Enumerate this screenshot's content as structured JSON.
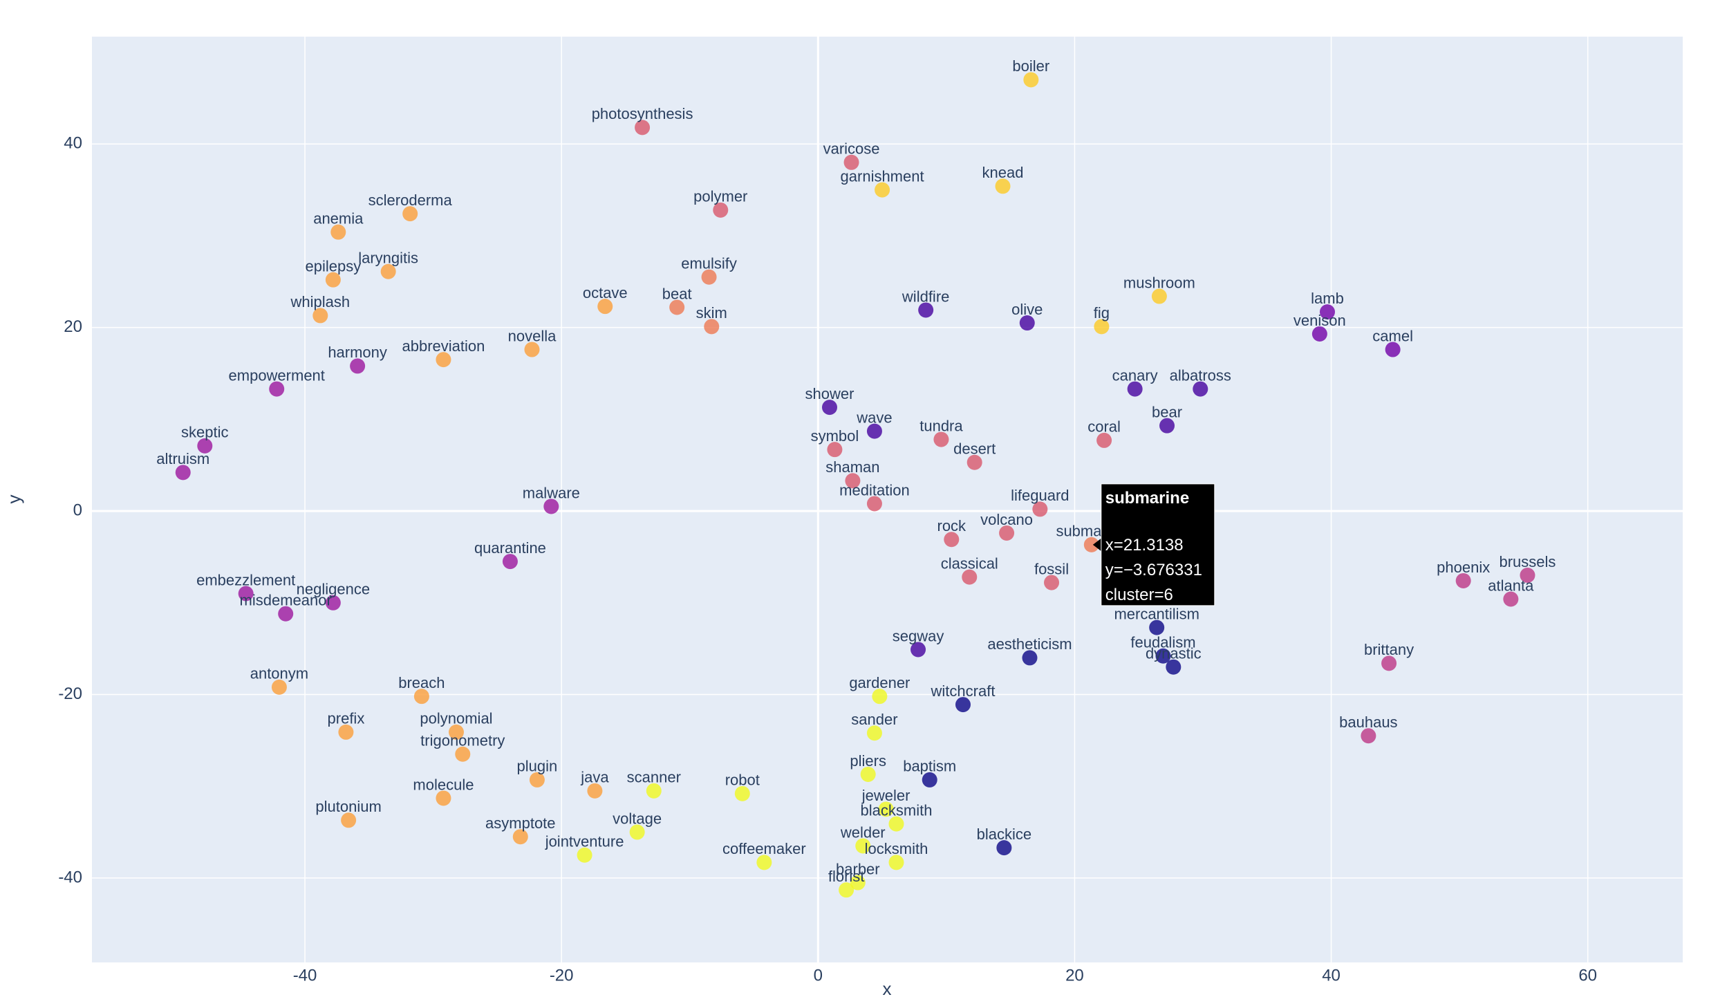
{
  "chart_data": {
    "type": "scatter",
    "x_label": "x",
    "y_label": "y",
    "xlim": [
      -56.6,
      67.4
    ],
    "ylim": [
      -49.2,
      51.7
    ],
    "xticks": [
      -40,
      -20,
      0,
      20,
      40,
      60
    ],
    "yticks": [
      -40,
      -20,
      0,
      20,
      40
    ],
    "grid": true,
    "colors": [
      "#0d0887",
      "#46039f",
      "#7201a8",
      "#9c179e",
      "#bd3786",
      "#d8576b",
      "#ed7953",
      "#fb9f3a",
      "#fdca26",
      "#f0f921"
    ],
    "text": [
      "boiler",
      "varicose",
      "photosynthesis",
      "garnishment",
      "polymer",
      "knead",
      "whiplash",
      "laryngitis",
      "emulsify",
      "beat",
      "skim",
      "octave",
      "novella",
      "harmony",
      "abbreviation",
      "wildfire",
      "venison",
      "lamb",
      "camel",
      "mushroom",
      "fig",
      "olive",
      "canary",
      "albatross",
      "bear",
      "shower",
      "wave",
      "symbol",
      "coral",
      "shaman",
      "meditation",
      "lifeguard",
      "submarine",
      "volcano",
      "rock",
      "fossil",
      "classical",
      "mercantilism",
      "feudalism",
      "dynastic",
      "aestheticism",
      "segway",
      "gardener",
      "witchcraft",
      "sander",
      "pliers",
      "baptism",
      "jeweler",
      "blacksmith",
      "welder",
      "locksmith",
      "blackice",
      "florist",
      "barber",
      "coffeemaker",
      "jointventure",
      "asymptote",
      "voltage",
      "molecule",
      "plutonium",
      "scanner",
      "robot",
      "plugin",
      "java",
      "breach",
      "antonym",
      "prefix",
      "trigonometry",
      "polynomial",
      "negligence",
      "misdemeanor",
      "embezzlement",
      "quarantine",
      "malware",
      "phoenix",
      "brussels",
      "atlanta",
      "brittany",
      "bauhaus",
      "altruism",
      "skeptic",
      "empowerment",
      "epilepsy",
      "anemia",
      "scleroderma",
      "desert",
      "tundra"
    ],
    "x": [
      16.6,
      2.6,
      -13.7,
      5.0,
      -7.6,
      14.4,
      -38.8,
      -33.5,
      -8.5,
      -11.0,
      -8.3,
      -16.6,
      -22.3,
      -35.9,
      -29.2,
      8.4,
      39.1,
      39.7,
      44.8,
      26.6,
      22.1,
      16.3,
      24.7,
      29.8,
      27.2,
      0.9,
      4.4,
      1.3,
      22.3,
      2.7,
      4.4,
      17.3,
      21.3138,
      14.7,
      10.4,
      18.2,
      11.8,
      26.4,
      26.9,
      27.7,
      16.5,
      7.8,
      4.8,
      11.3,
      4.4,
      3.9,
      8.7,
      5.3,
      6.1,
      3.5,
      6.1,
      14.5,
      2.2,
      3.1,
      -4.2,
      -18.2,
      -23.2,
      -14.1,
      -29.2,
      -36.6,
      -12.8,
      -5.9,
      -21.9,
      -17.4,
      -30.9,
      -42.0,
      -36.8,
      -27.7,
      -28.2,
      -37.8,
      -41.5,
      -44.6,
      -24.0,
      -20.8,
      50.3,
      55.3,
      54.0,
      44.5,
      42.9,
      -49.5,
      -47.8,
      -42.2,
      -37.8,
      -37.4,
      -31.8,
      12.2,
      9.6
    ],
    "y": [
      47.0,
      38.0,
      41.8,
      35.0,
      32.8,
      35.4,
      21.3,
      26.1,
      25.5,
      22.2,
      20.1,
      22.3,
      17.6,
      15.8,
      16.5,
      21.9,
      19.3,
      21.7,
      17.6,
      23.4,
      20.1,
      20.5,
      13.3,
      13.3,
      9.3,
      11.3,
      8.7,
      6.7,
      7.7,
      3.3,
      0.8,
      0.2,
      -3.676331,
      -2.4,
      -3.1,
      -7.8,
      -7.2,
      -12.7,
      -15.8,
      -17.0,
      -16.0,
      -15.1,
      -20.2,
      -21.1,
      -24.2,
      -28.7,
      -29.3,
      -32.5,
      -34.1,
      -36.5,
      -38.3,
      -36.7,
      -41.3,
      -40.5,
      -38.3,
      -37.5,
      -35.5,
      -35.0,
      -31.3,
      -33.7,
      -30.5,
      -30.8,
      -29.3,
      -30.5,
      -20.2,
      -19.2,
      -24.1,
      -26.5,
      -24.1,
      -10.0,
      -11.2,
      -9.0,
      -5.5,
      0.5,
      -7.6,
      -7.0,
      -9.6,
      -16.6,
      -24.5,
      4.2,
      7.1,
      13.3,
      25.2,
      30.4,
      32.4,
      5.3,
      7.8
    ],
    "cluster": [
      8,
      5,
      5,
      8,
      5,
      8,
      7,
      7,
      6,
      6,
      6,
      7,
      7,
      3,
      7,
      1,
      2,
      2,
      2,
      8,
      8,
      1,
      1,
      1,
      1,
      1,
      1,
      5,
      5,
      5,
      5,
      5,
      6,
      5,
      5,
      5,
      5,
      0,
      0,
      0,
      0,
      1,
      9,
      0,
      9,
      9,
      0,
      9,
      9,
      9,
      9,
      0,
      9,
      9,
      9,
      9,
      7,
      9,
      7,
      7,
      9,
      9,
      7,
      7,
      7,
      7,
      7,
      7,
      7,
      3,
      3,
      3,
      3,
      3,
      4,
      4,
      4,
      4,
      4,
      3,
      3,
      3,
      7,
      7,
      7,
      5,
      5
    ],
    "hover": {
      "title": "submarine",
      "lines": [
        "x=21.3138",
        "y=−3.676331",
        "cluster=6"
      ]
    }
  }
}
